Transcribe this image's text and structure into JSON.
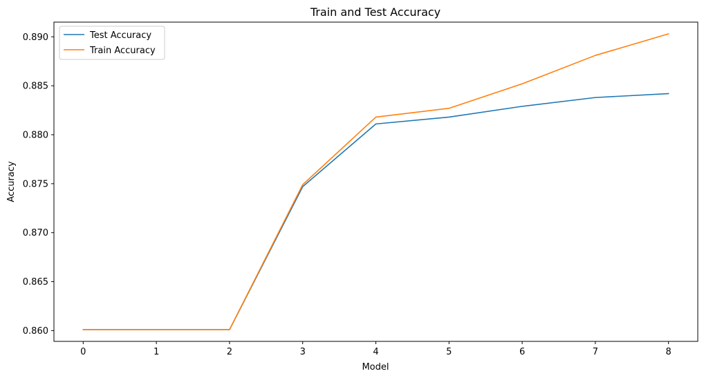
{
  "chart_data": {
    "type": "line",
    "title": "Train and Test Accuracy",
    "xlabel": "Model",
    "ylabel": "Accuracy",
    "x": [
      0,
      1,
      2,
      3,
      4,
      5,
      6,
      7,
      8
    ],
    "x_ticks": [
      "0",
      "1",
      "2",
      "3",
      "4",
      "5",
      "6",
      "7",
      "8"
    ],
    "y_ticks": [
      "0.860",
      "0.865",
      "0.870",
      "0.875",
      "0.880",
      "0.885",
      "0.890"
    ],
    "xlim": [
      -0.4,
      8.4
    ],
    "ylim": [
      0.8589,
      0.8915
    ],
    "grid": false,
    "legend_position": "top-left",
    "series": [
      {
        "name": "Test Accuracy",
        "color": "#1f77b4",
        "values": [
          0.8601,
          0.8601,
          0.8601,
          0.8747,
          0.8811,
          0.8818,
          0.8829,
          0.8838,
          0.8842
        ]
      },
      {
        "name": "Train Accuracy",
        "color": "#ff7f0e",
        "values": [
          0.8601,
          0.8601,
          0.8601,
          0.8749,
          0.8818,
          0.8827,
          0.8852,
          0.8881,
          0.8903
        ]
      }
    ]
  }
}
